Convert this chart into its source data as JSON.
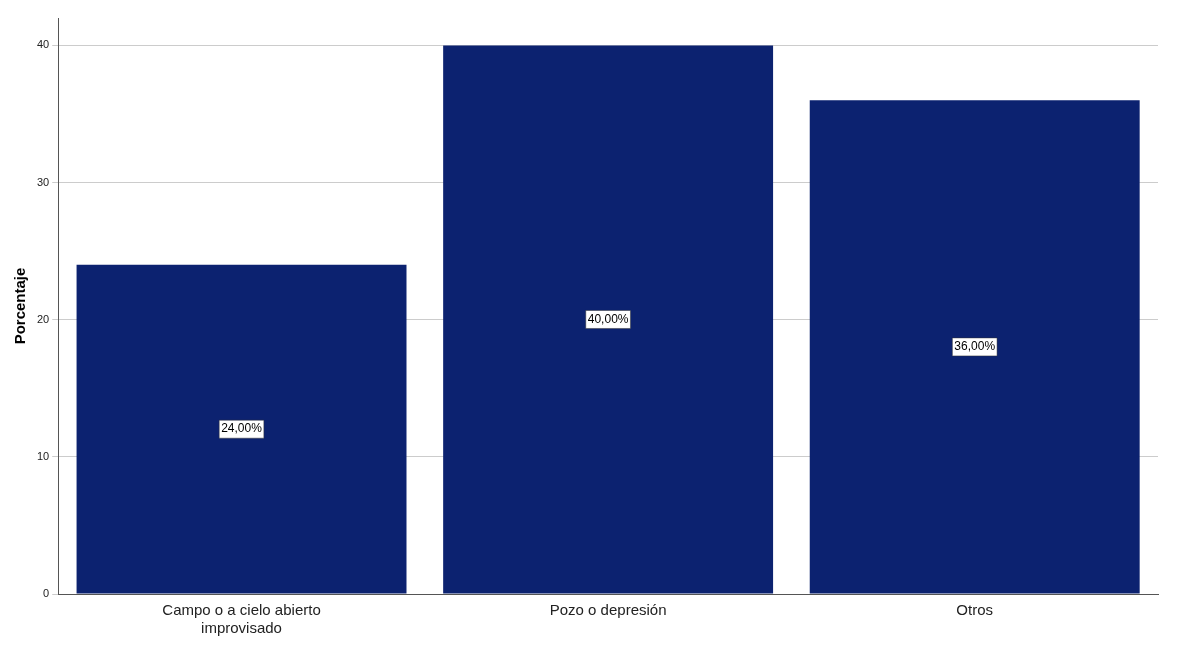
{
  "chart_data": {
    "type": "bar",
    "ylabel": "Porcentaje",
    "categories": [
      "Campo o a cielo abierto improvisado",
      "Pozo o depresión",
      "Otros"
    ],
    "values": [
      24,
      40,
      36
    ],
    "color": "#0c2270",
    "value_labels": [
      "24,00%",
      "40,00%",
      "36,00%"
    ],
    "ylim": [
      0,
      42
    ],
    "yticks": [
      0,
      10,
      20,
      30,
      40
    ],
    "grid": "y",
    "legend": false
  }
}
